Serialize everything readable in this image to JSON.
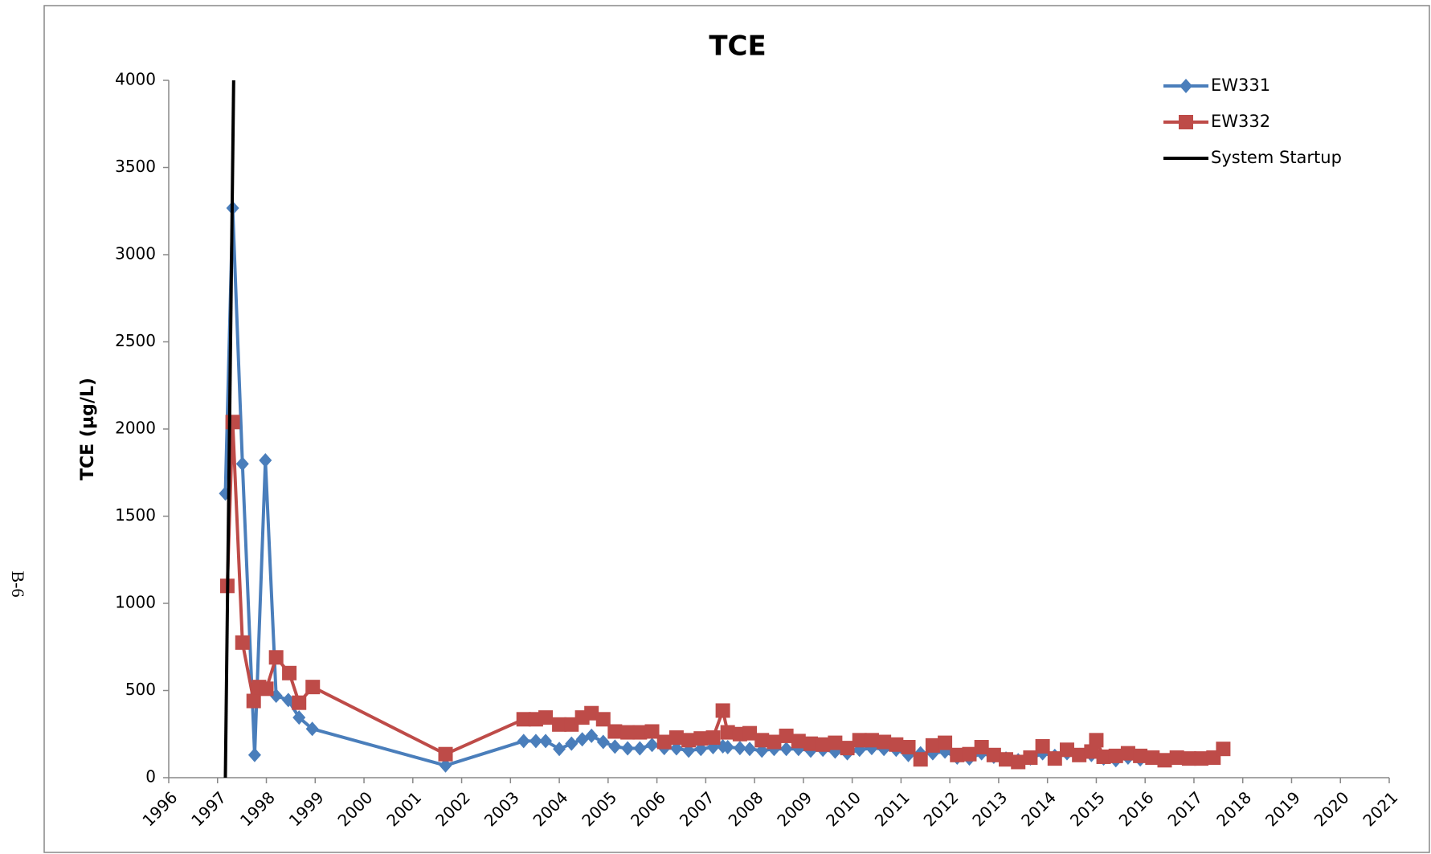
{
  "chart_data": {
    "type": "line",
    "title": "TCE",
    "ylabel": "TCE (µg/L)",
    "page_label": "B-6",
    "xlim": [
      1996,
      2021
    ],
    "xticks": [
      1996,
      1997,
      1998,
      1999,
      2000,
      2001,
      2002,
      2003,
      2004,
      2005,
      2006,
      2007,
      2008,
      2009,
      2010,
      2011,
      2012,
      2013,
      2014,
      2015,
      2016,
      2017,
      2018,
      2019,
      2020,
      2021
    ],
    "ylim": [
      0,
      4000
    ],
    "yticks": [
      0,
      500,
      1000,
      1500,
      2000,
      2500,
      3000,
      3500,
      4000
    ],
    "legend": "upper right",
    "series": [
      {
        "name": "EW331",
        "color": "#4a7ebb",
        "marker": "diamond",
        "x": [
          1997.16,
          1997.31,
          1997.51,
          1997.76,
          1997.98,
          1998.2,
          1998.45,
          1998.67,
          1998.94,
          2001.67,
          2003.27,
          2003.52,
          2003.72,
          2004.0,
          2004.25,
          2004.47,
          2004.66,
          2004.9,
          2005.14,
          2005.4,
          2005.65,
          2005.9,
          2006.15,
          2006.4,
          2006.65,
          2006.9,
          2007.15,
          2007.35,
          2007.45,
          2007.7,
          2007.9,
          2008.15,
          2008.4,
          2008.65,
          2008.9,
          2009.15,
          2009.4,
          2009.65,
          2009.9,
          2010.15,
          2010.4,
          2010.65,
          2010.9,
          2011.15,
          2011.4,
          2011.65,
          2011.9,
          2012.15,
          2012.4,
          2012.65,
          2012.9,
          2013.15,
          2013.4,
          2013.65,
          2013.9,
          2014.15,
          2014.4,
          2014.65,
          2014.9,
          2015.15,
          2015.4,
          2015.65,
          2015.9
        ],
        "values": [
          1630,
          3267,
          1800,
          130,
          1820,
          470,
          445,
          345,
          280,
          70,
          210,
          210,
          210,
          165,
          195,
          220,
          240,
          205,
          178,
          168,
          168,
          188,
          170,
          168,
          155,
          165,
          175,
          180,
          175,
          170,
          165,
          155,
          165,
          165,
          165,
          155,
          160,
          150,
          140,
          160,
          170,
          165,
          160,
          130,
          140,
          140,
          150,
          115,
          110,
          140,
          120,
          110,
          100,
          110,
          140,
          125,
          140,
          130,
          130,
          110,
          100,
          115,
          105
        ]
      },
      {
        "name": "EW332",
        "color": "#be4b48",
        "marker": "square",
        "x": [
          1997.2,
          1997.31,
          1997.51,
          1997.74,
          1997.85,
          1998.0,
          1998.2,
          1998.47,
          1998.67,
          1998.95,
          2001.67,
          2003.27,
          2003.52,
          2003.72,
          2004.0,
          2004.25,
          2004.47,
          2004.66,
          2004.9,
          2005.14,
          2005.4,
          2005.65,
          2005.9,
          2006.15,
          2006.4,
          2006.65,
          2006.9,
          2007.15,
          2007.35,
          2007.45,
          2007.7,
          2007.9,
          2008.15,
          2008.4,
          2008.65,
          2008.9,
          2009.15,
          2009.4,
          2009.65,
          2009.9,
          2010.15,
          2010.4,
          2010.65,
          2010.9,
          2011.15,
          2011.4,
          2011.65,
          2011.9,
          2012.15,
          2012.4,
          2012.65,
          2012.9,
          2013.15,
          2013.4,
          2013.65,
          2013.9,
          2014.15,
          2014.4,
          2014.65,
          2014.9,
          2015.0,
          2015.15,
          2015.4,
          2015.65,
          2015.9,
          2016.15,
          2016.4,
          2016.65,
          2016.9,
          2017.15,
          2017.4,
          2017.6
        ],
        "values": [
          1100,
          2040,
          775,
          440,
          520,
          510,
          690,
          600,
          430,
          520,
          135,
          335,
          335,
          345,
          305,
          305,
          345,
          370,
          335,
          265,
          260,
          260,
          265,
          205,
          230,
          215,
          225,
          230,
          385,
          260,
          250,
          255,
          215,
          205,
          240,
          210,
          195,
          190,
          200,
          170,
          215,
          215,
          205,
          190,
          175,
          105,
          185,
          200,
          130,
          135,
          175,
          130,
          105,
          90,
          115,
          180,
          110,
          160,
          130,
          150,
          215,
          120,
          125,
          140,
          125,
          115,
          100,
          115,
          110,
          110,
          115,
          165
        ]
      },
      {
        "name": "System Startup",
        "color": "#000000",
        "marker": "none",
        "x": [
          1997.16,
          1997.33
        ],
        "values": [
          0,
          4000
        ]
      }
    ]
  }
}
